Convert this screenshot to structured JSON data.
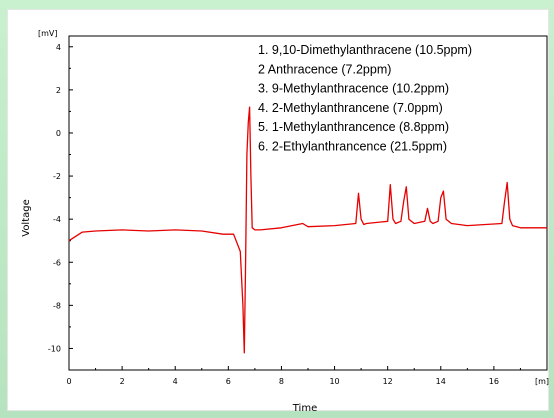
{
  "chart_data": {
    "type": "line",
    "xlabel": "Time",
    "ylabel": "Voltage",
    "x_unit": "[m]",
    "y_unit": "[mV]",
    "xlim": [
      0,
      18
    ],
    "ylim": [
      -11,
      4.5
    ],
    "x_ticks": [
      "0",
      "2",
      "4",
      "6",
      "8",
      "10",
      "12",
      "14",
      "16"
    ],
    "y_ticks": [
      "4",
      "2",
      "0",
      "-2",
      "-4",
      "-6",
      "-8",
      "-10"
    ],
    "legend": [
      "1. 9,10-Dimethylanthracene (10.5ppm)",
      "2 Anthracence (7.2ppm)",
      "3. 9-Methylanthracence (10.2ppm)",
      "4. 2-Methylanthrancene (7.0ppm)",
      "5. 1-Methylanthrancence (8.8ppm)",
      "6. 2-Ethylanthrancence (21.5ppm)"
    ],
    "line_color": "#e60000",
    "series": [
      {
        "x": [
          0,
          0.5,
          1,
          2,
          3,
          4,
          5,
          5.8,
          6.2,
          6.45,
          6.55,
          6.6,
          6.65,
          6.7,
          6.75,
          6.8,
          6.85,
          6.9,
          7.0,
          7.2,
          8,
          8.8,
          9,
          10,
          10.8,
          10.9,
          11.0,
          11.1,
          11.2,
          12.0,
          12.1,
          12.2,
          12.3,
          12.5,
          12.6,
          12.7,
          12.8,
          13.0,
          13.4,
          13.5,
          13.6,
          13.7,
          13.9,
          14.0,
          14.1,
          14.2,
          14.4,
          15,
          16.3,
          16.4,
          16.5,
          16.6,
          16.7,
          17,
          18
        ],
        "y": [
          -5.0,
          -4.6,
          -4.55,
          -4.5,
          -4.55,
          -4.5,
          -4.55,
          -4.7,
          -4.7,
          -5.5,
          -8.0,
          -10.2,
          -6.0,
          -1.0,
          0.5,
          1.2,
          -2.0,
          -4.4,
          -4.5,
          -4.5,
          -4.4,
          -4.2,
          -4.35,
          -4.3,
          -4.2,
          -2.8,
          -4.0,
          -4.25,
          -4.2,
          -4.1,
          -2.4,
          -4.0,
          -4.2,
          -4.1,
          -3.2,
          -2.5,
          -4.0,
          -4.2,
          -4.1,
          -3.5,
          -4.1,
          -4.2,
          -4.1,
          -3.0,
          -2.7,
          -4.0,
          -4.2,
          -4.3,
          -4.2,
          -3.2,
          -2.3,
          -4.0,
          -4.3,
          -4.4,
          -4.4
        ]
      }
    ]
  }
}
